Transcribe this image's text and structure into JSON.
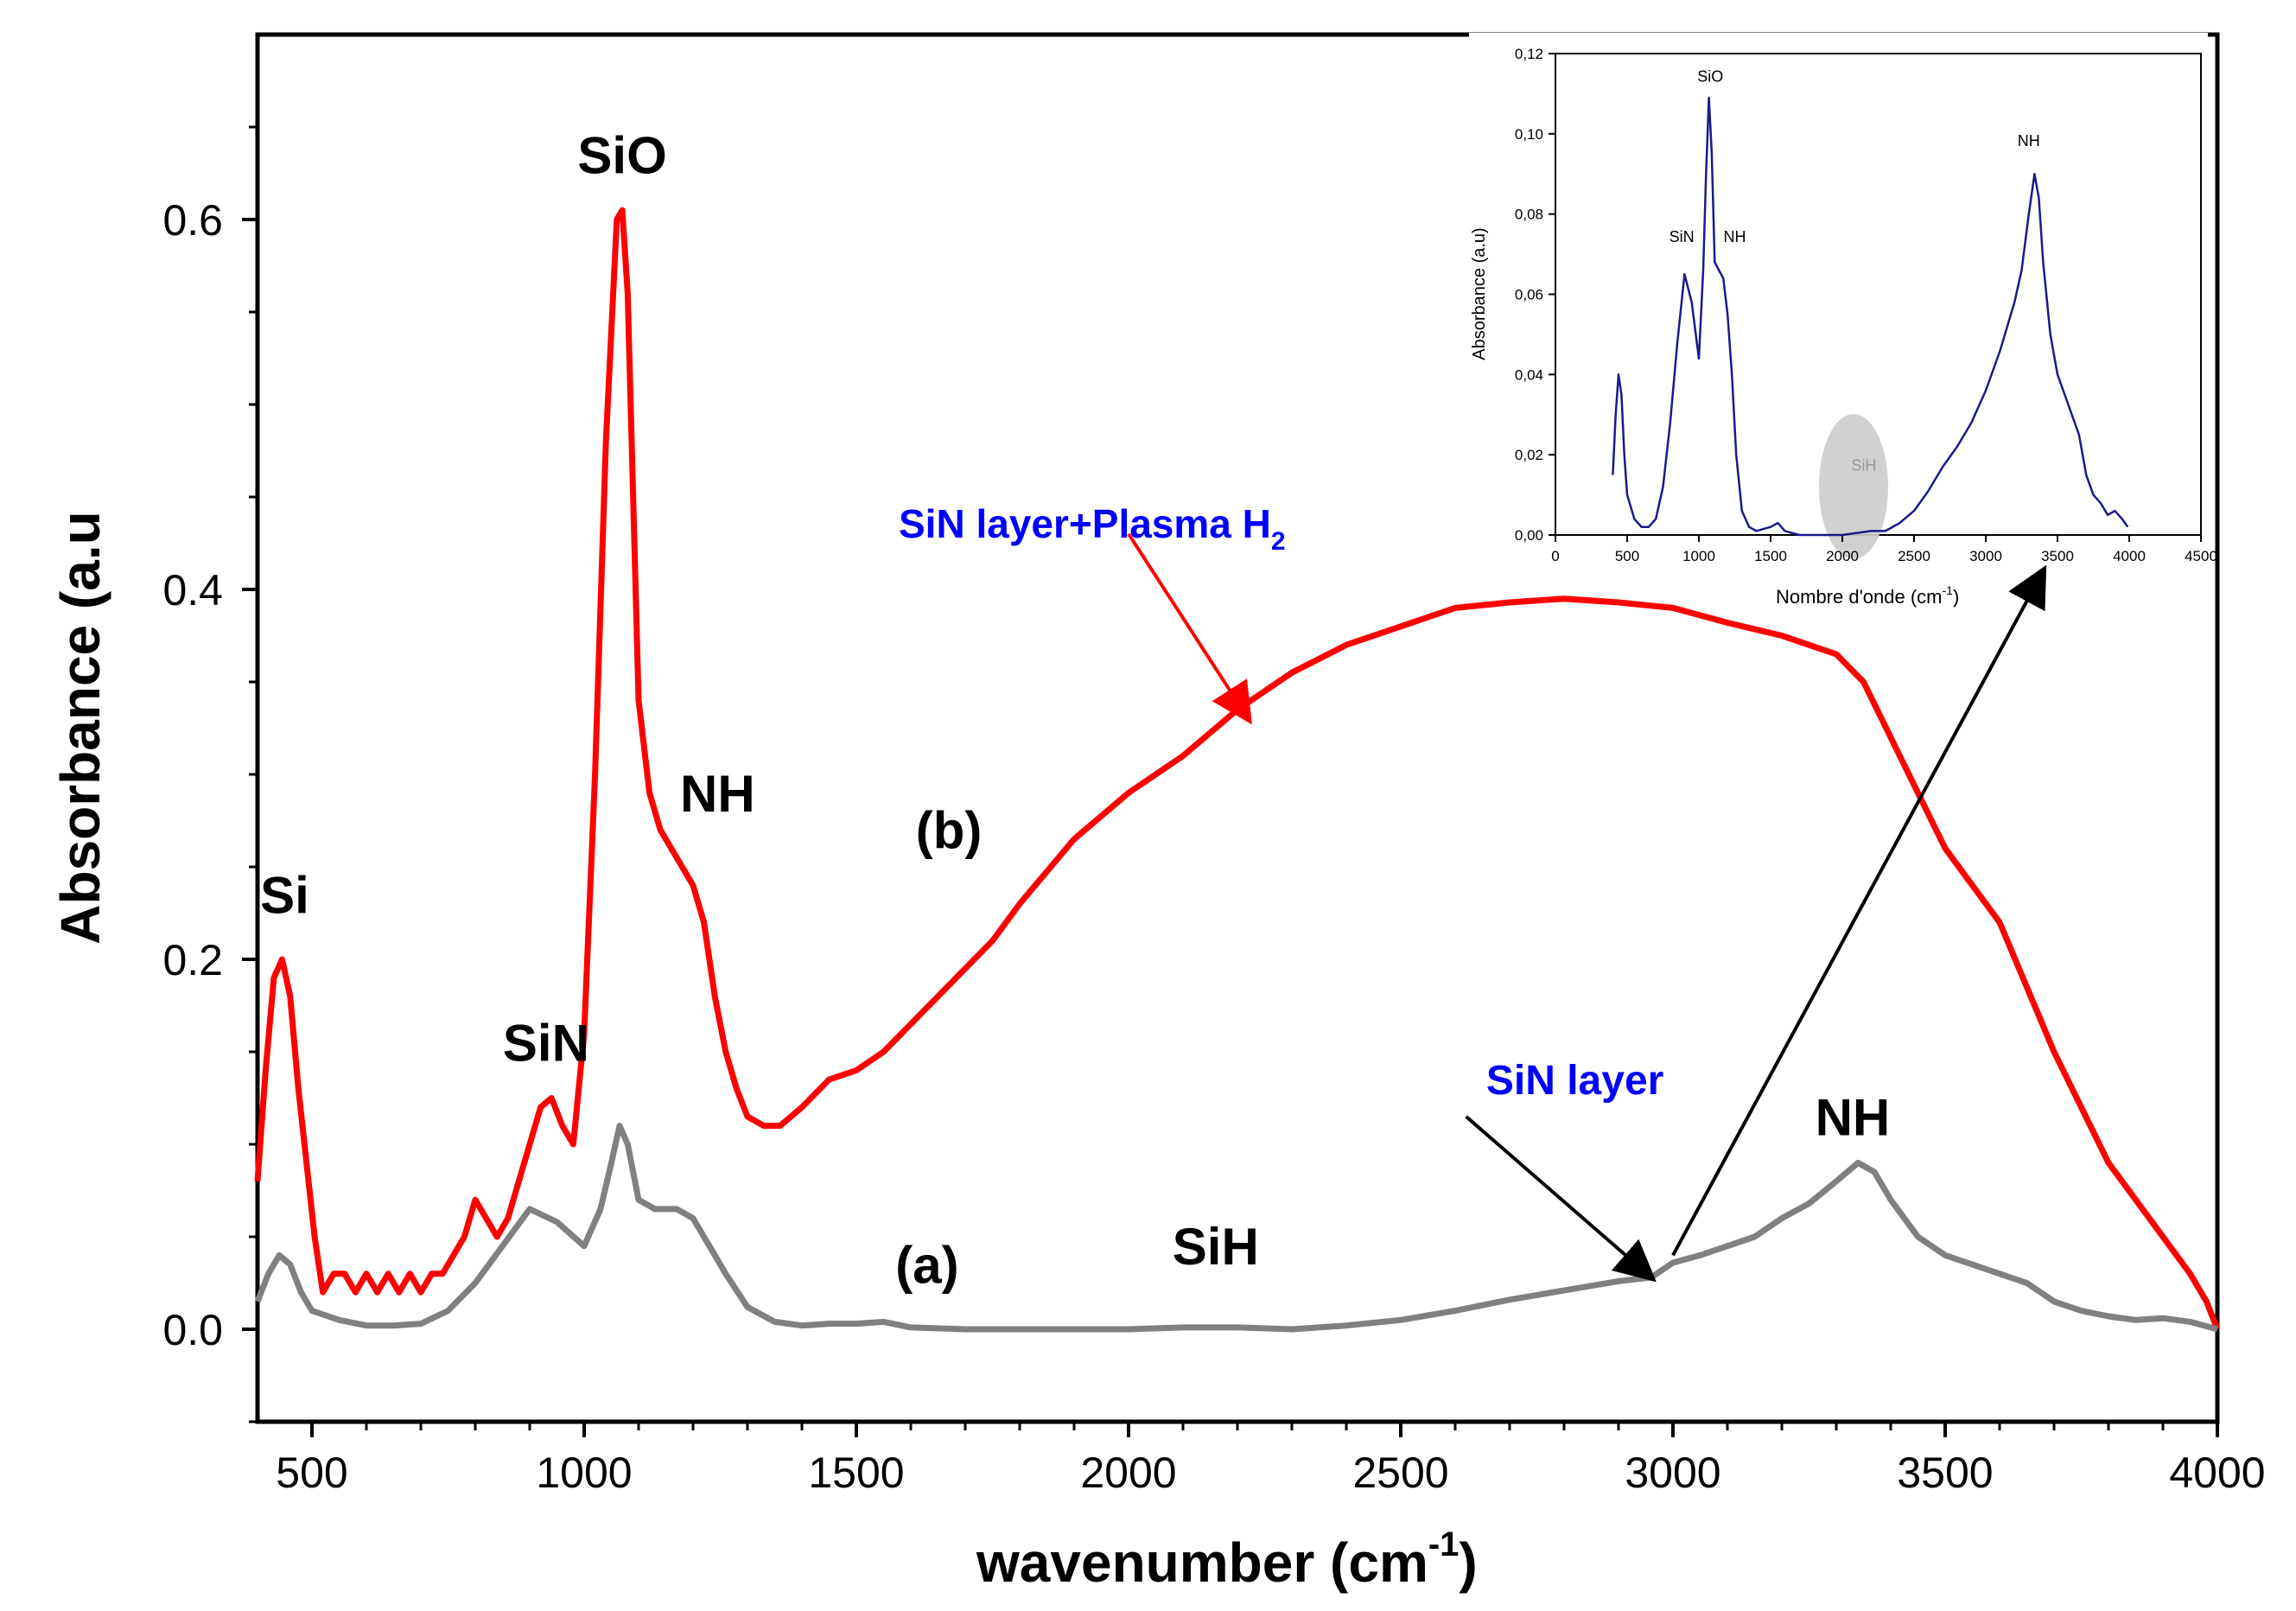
{
  "chart_data": [
    {
      "type": "line",
      "xlabel": "wavenumber (cm",
      "xlabel_sup": "-1",
      "xlabel_suffix": ")",
      "ylabel": "Absorbance (a.u",
      "xlim": [
        400,
        4000
      ],
      "ylim": [
        -0.05,
        0.7
      ],
      "x_ticks": [
        500,
        1000,
        1500,
        2000,
        2500,
        3000,
        3500,
        4000
      ],
      "y_ticks": [
        0.0,
        0.2,
        0.4,
        0.6
      ],
      "x_tick_labels": [
        "500",
        "1000",
        "1500",
        "2000",
        "2500",
        "3000",
        "3500",
        "4000"
      ],
      "y_tick_labels": [
        "0.0",
        "0.2",
        "0.4",
        "0.6"
      ],
      "grid": false,
      "series": [
        {
          "name": "SiN layer+Plasma H2",
          "id": "b",
          "color": "#ff0000",
          "points": [
            [
              400,
              0.08
            ],
            [
              415,
              0.14
            ],
            [
              430,
              0.19
            ],
            [
              445,
              0.2
            ],
            [
              460,
              0.18
            ],
            [
              475,
              0.13
            ],
            [
              490,
              0.09
            ],
            [
              505,
              0.05
            ],
            [
              520,
              0.02
            ],
            [
              540,
              0.03
            ],
            [
              560,
              0.03
            ],
            [
              580,
              0.02
            ],
            [
              600,
              0.03
            ],
            [
              620,
              0.02
            ],
            [
              640,
              0.03
            ],
            [
              660,
              0.02
            ],
            [
              680,
              0.03
            ],
            [
              700,
              0.02
            ],
            [
              720,
              0.03
            ],
            [
              740,
              0.03
            ],
            [
              760,
              0.04
            ],
            [
              780,
              0.05
            ],
            [
              800,
              0.07
            ],
            [
              820,
              0.06
            ],
            [
              840,
              0.05
            ],
            [
              860,
              0.06
            ],
            [
              880,
              0.08
            ],
            [
              900,
              0.1
            ],
            [
              920,
              0.12
            ],
            [
              940,
              0.125
            ],
            [
              960,
              0.11
            ],
            [
              980,
              0.1
            ],
            [
              1000,
              0.16
            ],
            [
              1020,
              0.3
            ],
            [
              1040,
              0.48
            ],
            [
              1060,
              0.6
            ],
            [
              1070,
              0.605
            ],
            [
              1080,
              0.56
            ],
            [
              1090,
              0.45
            ],
            [
              1100,
              0.34
            ],
            [
              1120,
              0.29
            ],
            [
              1140,
              0.27
            ],
            [
              1160,
              0.26
            ],
            [
              1180,
              0.25
            ],
            [
              1200,
              0.24
            ],
            [
              1220,
              0.22
            ],
            [
              1240,
              0.18
            ],
            [
              1260,
              0.15
            ],
            [
              1280,
              0.13
            ],
            [
              1300,
              0.115
            ],
            [
              1330,
              0.11
            ],
            [
              1360,
              0.11
            ],
            [
              1400,
              0.12
            ],
            [
              1450,
              0.135
            ],
            [
              1500,
              0.14
            ],
            [
              1550,
              0.15
            ],
            [
              1600,
              0.165
            ],
            [
              1650,
              0.18
            ],
            [
              1700,
              0.195
            ],
            [
              1750,
              0.21
            ],
            [
              1800,
              0.23
            ],
            [
              1900,
              0.265
            ],
            [
              2000,
              0.29
            ],
            [
              2100,
              0.31
            ],
            [
              2200,
              0.335
            ],
            [
              2300,
              0.355
            ],
            [
              2400,
              0.37
            ],
            [
              2500,
              0.38
            ],
            [
              2600,
              0.39
            ],
            [
              2700,
              0.393
            ],
            [
              2800,
              0.395
            ],
            [
              2900,
              0.393
            ],
            [
              3000,
              0.39
            ],
            [
              3100,
              0.382
            ],
            [
              3200,
              0.375
            ],
            [
              3300,
              0.365
            ],
            [
              3350,
              0.35
            ],
            [
              3400,
              0.32
            ],
            [
              3450,
              0.29
            ],
            [
              3500,
              0.26
            ],
            [
              3550,
              0.24
            ],
            [
              3600,
              0.22
            ],
            [
              3650,
              0.185
            ],
            [
              3700,
              0.15
            ],
            [
              3750,
              0.12
            ],
            [
              3800,
              0.09
            ],
            [
              3850,
              0.07
            ],
            [
              3900,
              0.05
            ],
            [
              3950,
              0.03
            ],
            [
              3980,
              0.015
            ],
            [
              4000,
              0.0
            ]
          ]
        },
        {
          "name": "SiN layer",
          "id": "a",
          "color": "#808080",
          "points": [
            [
              400,
              0.015
            ],
            [
              420,
              0.03
            ],
            [
              440,
              0.04
            ],
            [
              460,
              0.035
            ],
            [
              480,
              0.02
            ],
            [
              500,
              0.01
            ],
            [
              550,
              0.005
            ],
            [
              600,
              0.002
            ],
            [
              650,
              0.002
            ],
            [
              700,
              0.003
            ],
            [
              750,
              0.01
            ],
            [
              800,
              0.025
            ],
            [
              850,
              0.045
            ],
            [
              900,
              0.065
            ],
            [
              950,
              0.058
            ],
            [
              1000,
              0.045
            ],
            [
              1030,
              0.065
            ],
            [
              1050,
              0.09
            ],
            [
              1065,
              0.11
            ],
            [
              1080,
              0.1
            ],
            [
              1100,
              0.07
            ],
            [
              1130,
              0.065
            ],
            [
              1170,
              0.065
            ],
            [
              1200,
              0.06
            ],
            [
              1230,
              0.045
            ],
            [
              1260,
              0.03
            ],
            [
              1300,
              0.012
            ],
            [
              1350,
              0.004
            ],
            [
              1400,
              0.002
            ],
            [
              1450,
              0.003
            ],
            [
              1500,
              0.003
            ],
            [
              1550,
              0.004
            ],
            [
              1600,
              0.001
            ],
            [
              1700,
              0.0
            ],
            [
              1800,
              0.0
            ],
            [
              1900,
              0.0
            ],
            [
              2000,
              0.0
            ],
            [
              2100,
              0.001
            ],
            [
              2200,
              0.001
            ],
            [
              2300,
              0.0
            ],
            [
              2400,
              0.002
            ],
            [
              2500,
              0.005
            ],
            [
              2600,
              0.01
            ],
            [
              2700,
              0.016
            ],
            [
              2800,
              0.021
            ],
            [
              2900,
              0.026
            ],
            [
              2960,
              0.028
            ],
            [
              3000,
              0.036
            ],
            [
              3050,
              0.04
            ],
            [
              3100,
              0.045
            ],
            [
              3150,
              0.05
            ],
            [
              3200,
              0.06
            ],
            [
              3250,
              0.068
            ],
            [
              3300,
              0.08
            ],
            [
              3340,
              0.09
            ],
            [
              3370,
              0.085
            ],
            [
              3400,
              0.07
            ],
            [
              3450,
              0.05
            ],
            [
              3500,
              0.04
            ],
            [
              3550,
              0.035
            ],
            [
              3600,
              0.03
            ],
            [
              3650,
              0.025
            ],
            [
              3700,
              0.015
            ],
            [
              3750,
              0.01
            ],
            [
              3800,
              0.007
            ],
            [
              3850,
              0.005
            ],
            [
              3900,
              0.006
            ],
            [
              3950,
              0.004
            ],
            [
              4000,
              0.0
            ]
          ]
        }
      ],
      "annotations": [
        {
          "text": "Si",
          "x": 450,
          "y": 0.225,
          "color": "#000000"
        },
        {
          "text": "SiN",
          "x": 930,
          "y": 0.145,
          "color": "#000000"
        },
        {
          "text": "SiO",
          "x": 1070,
          "y": 0.625,
          "color": "#000000"
        },
        {
          "text": "NH",
          "x": 1245,
          "y": 0.28,
          "color": "#000000"
        },
        {
          "text": "(b)",
          "x": 1670,
          "y": 0.26,
          "color": "#000000"
        },
        {
          "text": "(a)",
          "x": 1630,
          "y": 0.025,
          "color": "#000000"
        },
        {
          "text": "SiH",
          "x": 2160,
          "y": 0.035,
          "color": "#000000"
        },
        {
          "text": "NH",
          "x": 3330,
          "y": 0.105,
          "color": "#000000"
        },
        {
          "text": "SiN layer",
          "x": 2820,
          "y": 0.127,
          "color": "#0000ff"
        }
      ],
      "legend_label_b": "SiN layer+Plasma H",
      "legend_label_b_sub": "2",
      "arrows": [
        {
          "from": [
            2000,
            0.43
          ],
          "to": [
            2220,
            0.33
          ],
          "color": "#ff0000"
        },
        {
          "from": [
            2620,
            0.115
          ],
          "to": [
            2960,
            0.028
          ],
          "color": "#000000"
        },
        {
          "from": [
            3000,
            0.04
          ],
          "to": [
            3680,
            0.41
          ],
          "color": "#000000"
        }
      ]
    },
    {
      "type": "line",
      "id": "inset",
      "xlabel": "Nombre d'onde (cm",
      "xlabel_sup": "-1",
      "xlabel_suffix": ")",
      "ylabel": "Absorbance (a.u)",
      "xlim": [
        0,
        4500
      ],
      "ylim": [
        0,
        0.12
      ],
      "x_ticks": [
        0,
        500,
        1000,
        1500,
        2000,
        2500,
        3000,
        3500,
        4000,
        4500
      ],
      "x_tick_labels": [
        "0",
        "500",
        "1000",
        "1500",
        "2000",
        "2500",
        "3000",
        "3500",
        "4000",
        "4500"
      ],
      "y_ticks": [
        0.0,
        0.02,
        0.04,
        0.06,
        0.08,
        0.1,
        0.12
      ],
      "y_tick_labels": [
        "0,00",
        "0,02",
        "0,04",
        "0,06",
        "0,08",
        "0,10",
        "0,12"
      ],
      "series": [
        {
          "name": "SiN layer",
          "color": "#1a1a8c",
          "points": [
            [
              400,
              0.015
            ],
            [
              420,
              0.03
            ],
            [
              440,
              0.04
            ],
            [
              460,
              0.035
            ],
            [
              480,
              0.02
            ],
            [
              500,
              0.01
            ],
            [
              550,
              0.004
            ],
            [
              600,
              0.002
            ],
            [
              650,
              0.002
            ],
            [
              700,
              0.004
            ],
            [
              750,
              0.012
            ],
            [
              800,
              0.028
            ],
            [
              850,
              0.048
            ],
            [
              900,
              0.065
            ],
            [
              950,
              0.058
            ],
            [
              1000,
              0.044
            ],
            [
              1030,
              0.066
            ],
            [
              1050,
              0.09
            ],
            [
              1070,
              0.109
            ],
            [
              1090,
              0.095
            ],
            [
              1110,
              0.068
            ],
            [
              1140,
              0.066
            ],
            [
              1170,
              0.064
            ],
            [
              1200,
              0.055
            ],
            [
              1230,
              0.04
            ],
            [
              1260,
              0.02
            ],
            [
              1300,
              0.006
            ],
            [
              1350,
              0.002
            ],
            [
              1400,
              0.001
            ],
            [
              1500,
              0.002
            ],
            [
              1550,
              0.003
            ],
            [
              1600,
              0.001
            ],
            [
              1700,
              0.0
            ],
            [
              1800,
              0.0
            ],
            [
              2000,
              0.0
            ],
            [
              2200,
              0.001
            ],
            [
              2300,
              0.001
            ],
            [
              2400,
              0.003
            ],
            [
              2500,
              0.006
            ],
            [
              2600,
              0.011
            ],
            [
              2700,
              0.017
            ],
            [
              2800,
              0.022
            ],
            [
              2900,
              0.028
            ],
            [
              3000,
              0.036
            ],
            [
              3100,
              0.046
            ],
            [
              3200,
              0.058
            ],
            [
              3250,
              0.066
            ],
            [
              3300,
              0.08
            ],
            [
              3340,
              0.09
            ],
            [
              3370,
              0.084
            ],
            [
              3400,
              0.068
            ],
            [
              3450,
              0.05
            ],
            [
              3500,
              0.04
            ],
            [
              3550,
              0.035
            ],
            [
              3600,
              0.03
            ],
            [
              3650,
              0.025
            ],
            [
              3700,
              0.015
            ],
            [
              3750,
              0.01
            ],
            [
              3800,
              0.008
            ],
            [
              3850,
              0.005
            ],
            [
              3900,
              0.006
            ],
            [
              3950,
              0.004
            ],
            [
              3990,
              0.002
            ]
          ]
        }
      ],
      "annotations": [
        {
          "text": "SiO",
          "x": 1080,
          "y": 0.113
        },
        {
          "text": "SiN",
          "x": 880,
          "y": 0.073
        },
        {
          "text": "NH",
          "x": 1250,
          "y": 0.073
        },
        {
          "text": "NH",
          "x": 3300,
          "y": 0.097
        },
        {
          "text": "SiH",
          "x": 2150,
          "y": 0.016
        }
      ]
    }
  ]
}
